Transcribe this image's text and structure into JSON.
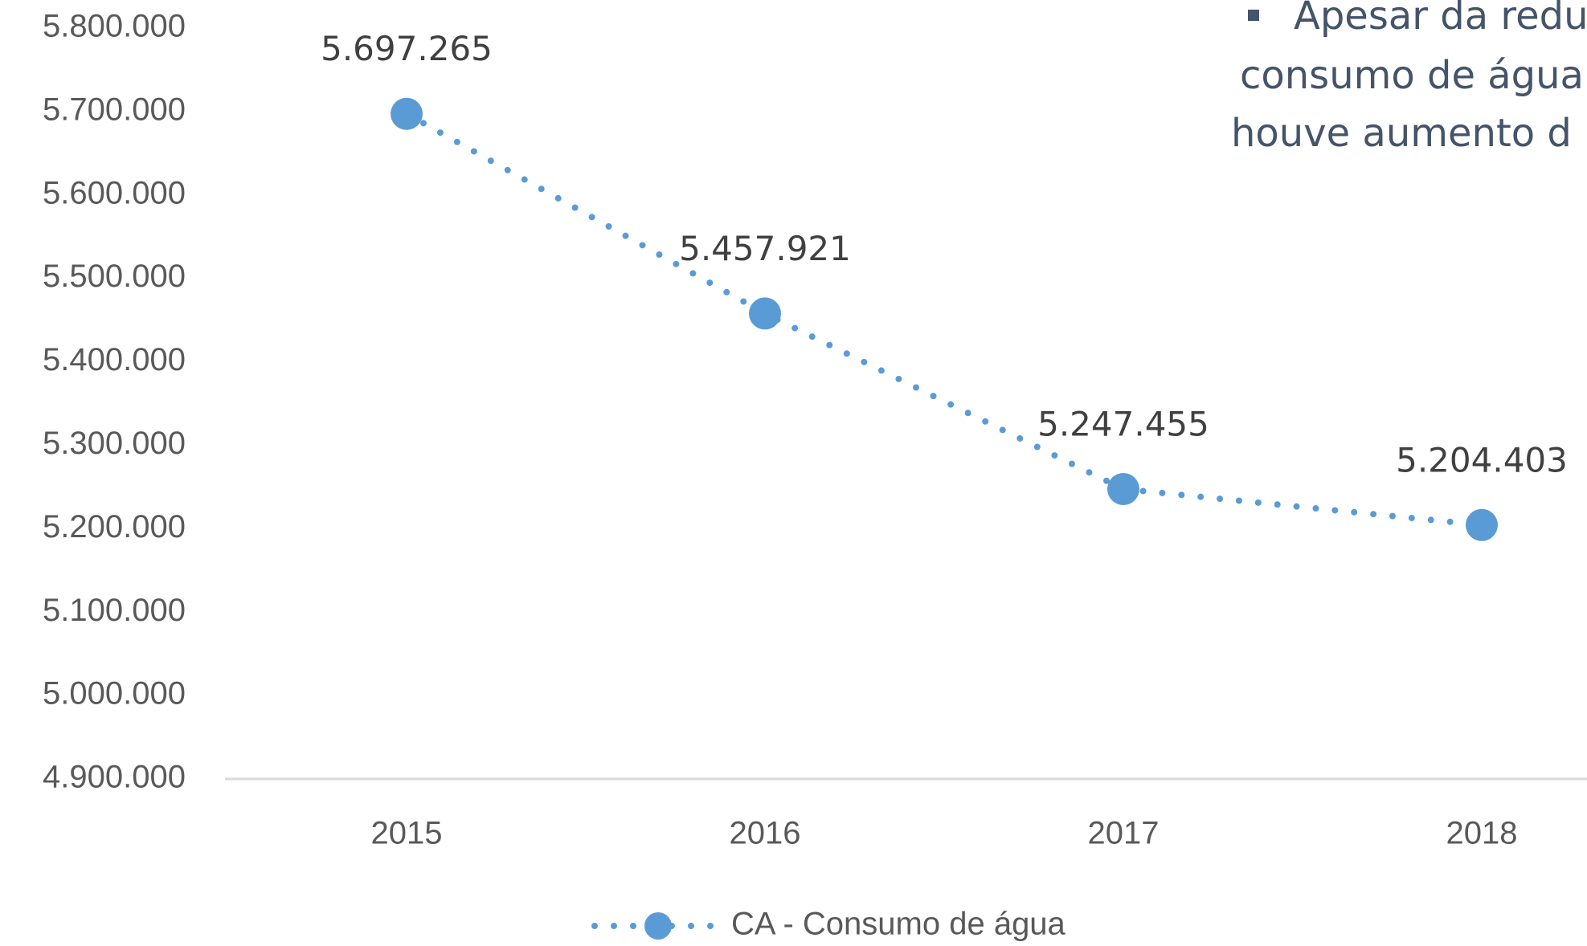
{
  "chart_data": {
    "type": "line",
    "categories": [
      "2015",
      "2016",
      "2017",
      "2018"
    ],
    "series": [
      {
        "name": "CA - Consumo de água",
        "color": "#5b9bd5",
        "values": [
          5697265,
          5457921,
          5247455,
          5204403
        ],
        "value_labels": [
          "5.697.265",
          "5.457.921",
          "5.247.455",
          "5.204.403"
        ]
      }
    ],
    "ylim": [
      4900000,
      5800000
    ],
    "yticks": [
      {
        "value": 4900000,
        "label": "4.900.000"
      },
      {
        "value": 5000000,
        "label": "5.000.000"
      },
      {
        "value": 5100000,
        "label": "5.100.000"
      },
      {
        "value": 5200000,
        "label": "5.200.000"
      },
      {
        "value": 5300000,
        "label": "5.300.000"
      },
      {
        "value": 5400000,
        "label": "5.400.000"
      },
      {
        "value": 5500000,
        "label": "5.500.000"
      },
      {
        "value": 5600000,
        "label": "5.600.000"
      },
      {
        "value": 5700000,
        "label": "5.700.000"
      },
      {
        "value": 5800000,
        "label": "5.800.000"
      }
    ],
    "grid": false,
    "legend": "bottom",
    "annotation": [
      "Apesar da redu",
      "consumo de água",
      "houve aumento d"
    ]
  }
}
